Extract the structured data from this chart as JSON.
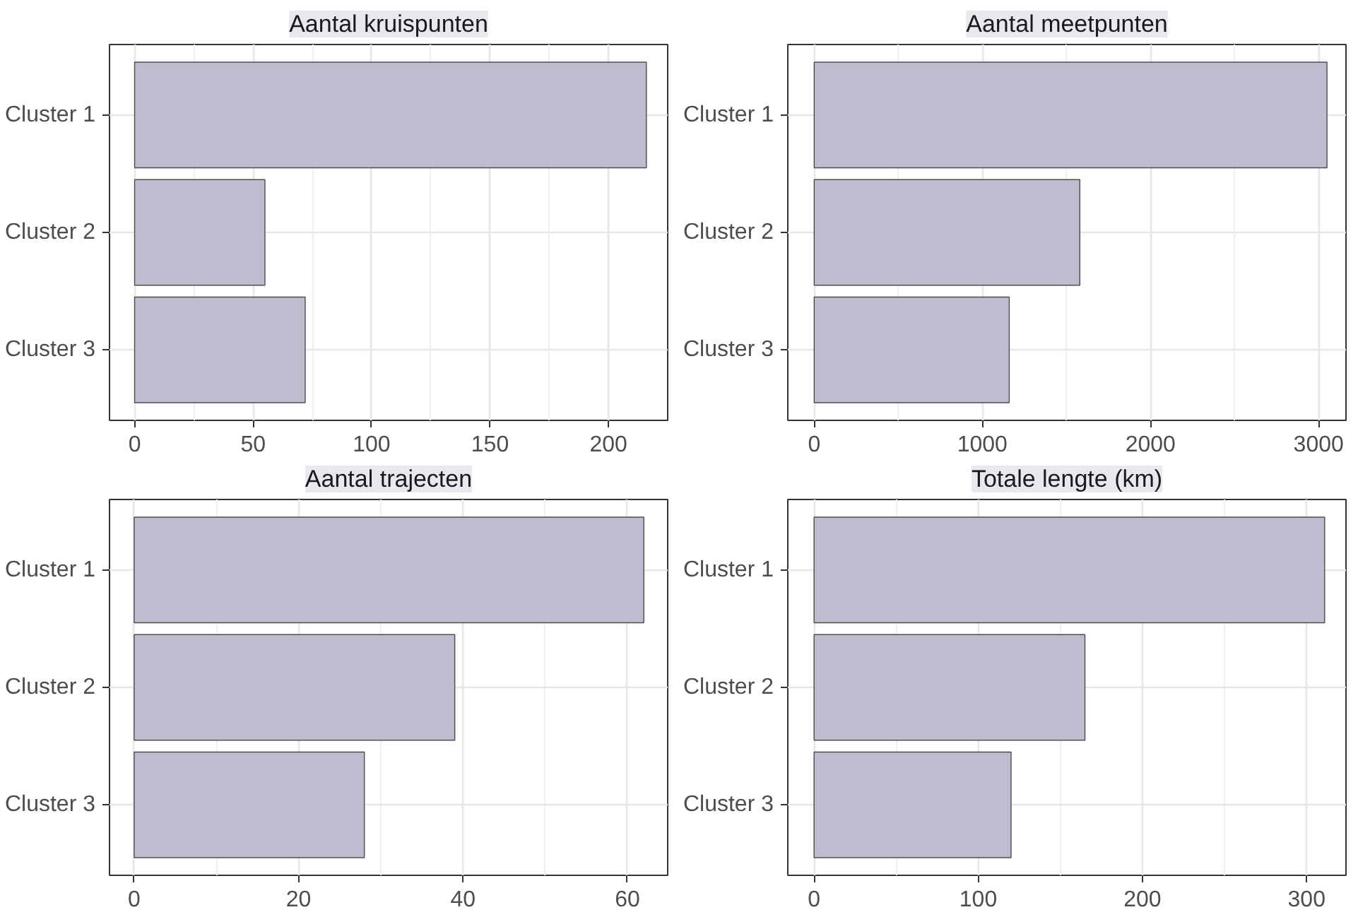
{
  "chart_data": [
    {
      "type": "bar",
      "orientation": "horizontal",
      "title": "Aantal kruispunten",
      "categories": [
        "Cluster 1",
        "Cluster 2",
        "Cluster 3"
      ],
      "values": [
        216,
        55,
        72
      ],
      "color": "#bebdd0",
      "xlim": [
        -10.6,
        225
      ],
      "xticks": [
        0,
        50,
        100,
        150,
        200
      ],
      "grid": true
    },
    {
      "type": "bar",
      "orientation": "horizontal",
      "title": "Aantal meetpunten",
      "categories": [
        "Cluster 1",
        "Cluster 2",
        "Cluster 3"
      ],
      "values": [
        3050,
        1580,
        1160
      ],
      "color": "#bebdd0",
      "xlim": [
        -157,
        3163
      ],
      "xticks": [
        0,
        1000,
        2000,
        3000
      ],
      "grid": true
    },
    {
      "type": "bar",
      "orientation": "horizontal",
      "title": "Aantal trajecten",
      "categories": [
        "Cluster 1",
        "Cluster 2",
        "Cluster 3"
      ],
      "values": [
        62,
        39,
        28
      ],
      "color": "#bebdd0",
      "xlim": [
        -3.0,
        64.9
      ],
      "xticks": [
        0,
        20,
        40,
        60
      ],
      "grid": true
    },
    {
      "type": "bar",
      "orientation": "horizontal",
      "title": "Totale lengte (km)",
      "categories": [
        "Cluster 1",
        "Cluster 2",
        "Cluster 3"
      ],
      "values": [
        311,
        165,
        120
      ],
      "color": "#bebdd0",
      "xlim": [
        -16,
        324
      ],
      "xticks": [
        0,
        100,
        200,
        300
      ],
      "grid": true
    }
  ]
}
